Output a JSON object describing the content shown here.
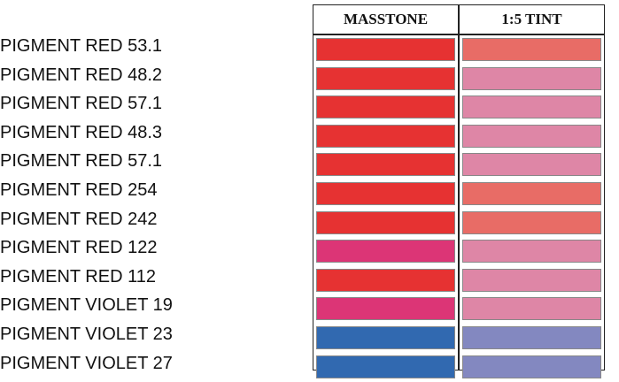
{
  "table": {
    "headers": {
      "masstone": "MASSTONE",
      "tint": "1:5 TINT"
    },
    "rows": [
      {
        "pigment": "PIGMENT RED 53.1",
        "masstone_color": "#e63232",
        "tint_color": "#e86c66"
      },
      {
        "pigment": "PIGMENT RED 48.2",
        "masstone_color": "#e63232",
        "tint_color": "#de86a6"
      },
      {
        "pigment": "PIGMENT RED 57.1",
        "masstone_color": "#e63232",
        "tint_color": "#de86a6"
      },
      {
        "pigment": "PIGMENT RED 48.3",
        "masstone_color": "#e63232",
        "tint_color": "#de86a6"
      },
      {
        "pigment": "PIGMENT RED 57.1",
        "masstone_color": "#e63232",
        "tint_color": "#de86a6"
      },
      {
        "pigment": "PIGMENT RED 254",
        "masstone_color": "#e63232",
        "tint_color": "#e86c66"
      },
      {
        "pigment": "PIGMENT RED 242",
        "masstone_color": "#e63232",
        "tint_color": "#e86c66"
      },
      {
        "pigment": "PIGMENT RED 122",
        "masstone_color": "#dc3576",
        "tint_color": "#de86a6"
      },
      {
        "pigment": "PIGMENT RED 112",
        "masstone_color": "#e63232",
        "tint_color": "#de86a6"
      },
      {
        "pigment": "PIGMENT VIOLET 19",
        "masstone_color": "#dc3576",
        "tint_color": "#de86a6"
      },
      {
        "pigment": "PIGMENT VIOLET 23",
        "masstone_color": "#3169b0",
        "tint_color": "#8388c0"
      },
      {
        "pigment": "PIGMENT VIOLET 27",
        "masstone_color": "#3169b0",
        "tint_color": "#8388c0"
      }
    ]
  }
}
